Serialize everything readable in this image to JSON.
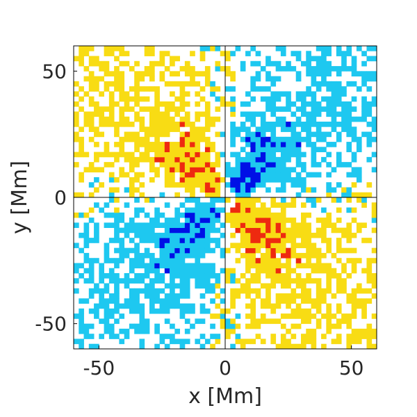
{
  "chart_data": {
    "type": "heatmap",
    "title": "",
    "xlabel": "x [Mm]",
    "ylabel": "y [Mm]",
    "xlim": [
      -60,
      60
    ],
    "ylim": [
      -60,
      60
    ],
    "x_ticks": [
      {
        "value": -50,
        "label": "-50"
      },
      {
        "value": 0,
        "label": "0"
      },
      {
        "value": 50,
        "label": "50"
      }
    ],
    "y_ticks": [
      {
        "value": -50,
        "label": "-50"
      },
      {
        "value": 0,
        "label": "0"
      },
      {
        "value": 50,
        "label": "50"
      }
    ],
    "grid": false,
    "reference_lines": [
      {
        "orientation": "vertical",
        "value": 0
      },
      {
        "orientation": "horizontal",
        "value": 0
      }
    ],
    "cell_size_mm": 2,
    "colormap": {
      "levels": [
        -2,
        -1,
        0,
        1,
        2
      ],
      "colors": {
        "-2": "#0010e6",
        "-1": "#1ec8f0",
        "0": "#ffffff",
        "1": "#f8dc14",
        "2": "#ee2a10"
      }
    },
    "pattern": "Quadrupolar cross pattern: positive (red/yellow) lobes in the upper-left and lower-right quadrants, negative (blue/cyan) lobes in the upper-right and lower-left quadrants; strongest near the origin and fading with noisy speckle toward the edges."
  }
}
